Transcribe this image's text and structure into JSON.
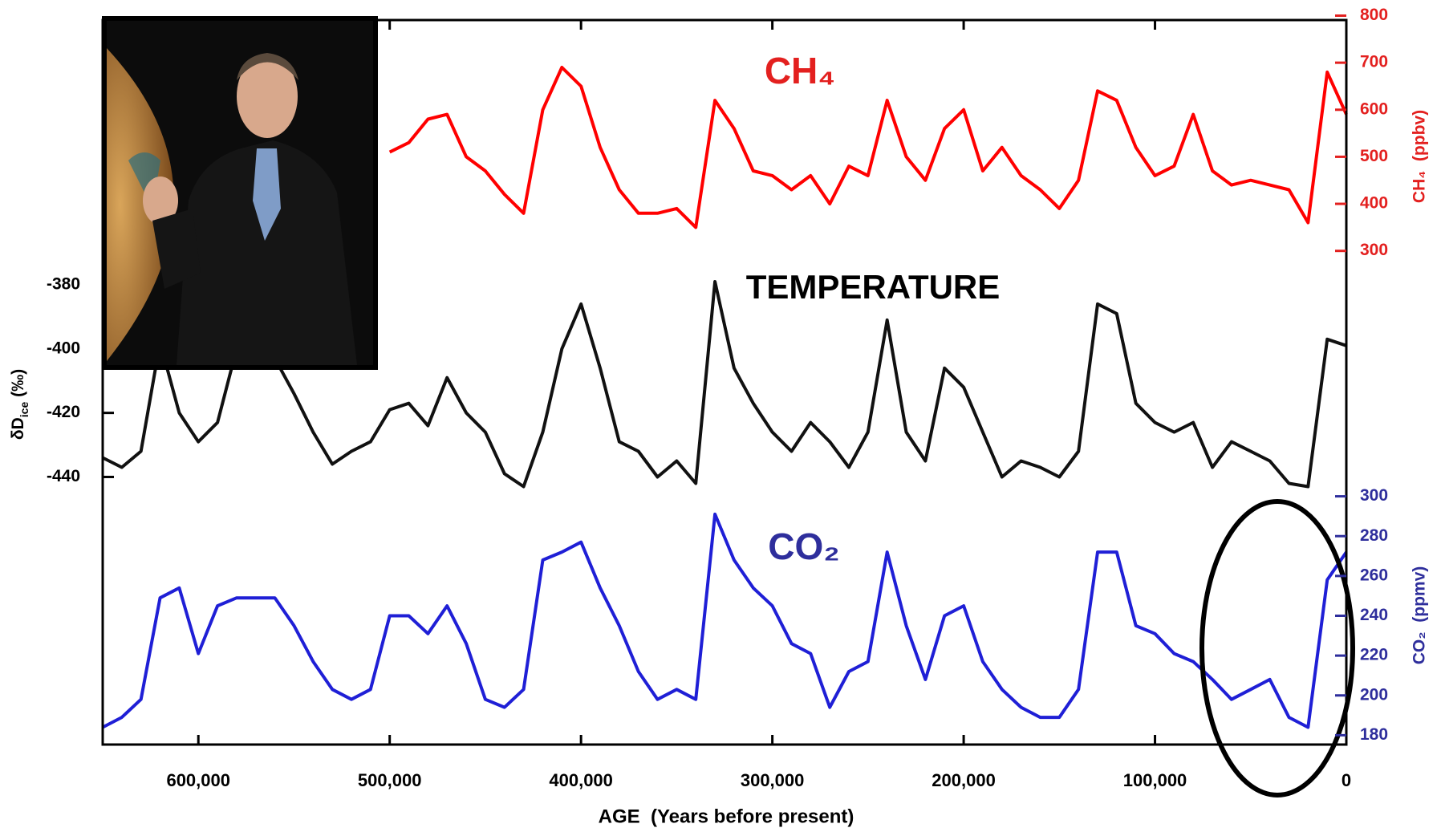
{
  "chart_data": {
    "type": "line",
    "xlabel": "AGE  (Years before present)",
    "xlim": [
      650000,
      0
    ],
    "xticks": [
      {
        "value": 600000,
        "label": "600,000"
      },
      {
        "value": 500000,
        "label": "500,000"
      },
      {
        "value": 400000,
        "label": "400,000"
      },
      {
        "value": 300000,
        "label": "300,000"
      },
      {
        "value": 200000,
        "label": "200,000"
      },
      {
        "value": 100000,
        "label": "100,000"
      },
      0
    ],
    "x": [
      650000,
      640000,
      630000,
      620000,
      610000,
      600000,
      590000,
      580000,
      570000,
      560000,
      550000,
      540000,
      530000,
      520000,
      510000,
      500000,
      490000,
      480000,
      470000,
      460000,
      450000,
      440000,
      430000,
      420000,
      410000,
      400000,
      390000,
      380000,
      370000,
      360000,
      350000,
      340000,
      330000,
      320000,
      310000,
      300000,
      290000,
      280000,
      270000,
      260000,
      250000,
      240000,
      230000,
      220000,
      210000,
      200000,
      190000,
      180000,
      170000,
      160000,
      150000,
      140000,
      130000,
      120000,
      110000,
      100000,
      90000,
      80000,
      70000,
      60000,
      50000,
      40000,
      30000,
      20000,
      10000,
      0
    ],
    "series": [
      {
        "name": "CH₄",
        "color": "#ff0000",
        "label_color": "#e3201f",
        "axis_side": "right",
        "ylabel": "CH₄  (ppbv)",
        "ylim": [
          300,
          800
        ],
        "yticks": [
          300,
          400,
          500,
          600,
          700,
          800
        ],
        "values": [
          null,
          null,
          null,
          null,
          null,
          null,
          null,
          null,
          null,
          null,
          null,
          null,
          null,
          null,
          null,
          510,
          530,
          580,
          590,
          500,
          470,
          420,
          380,
          600,
          690,
          650,
          520,
          430,
          380,
          380,
          390,
          350,
          620,
          560,
          470,
          460,
          430,
          460,
          400,
          480,
          460,
          620,
          500,
          450,
          560,
          600,
          470,
          520,
          460,
          430,
          390,
          450,
          640,
          620,
          520,
          460,
          480,
          590,
          470,
          440,
          450,
          440,
          430,
          360,
          680,
          590
        ]
      },
      {
        "name": "TEMPERATURE",
        "color": "#111111",
        "label_color": "#000000",
        "axis_side": "left",
        "ylabel": [
          "δD",
          "ice",
          " (‰)"
        ],
        "ylim": [
          -450,
          -375
        ],
        "yticks": [
          -440,
          -420,
          -400,
          -380
        ],
        "values": [
          -434,
          -437,
          -432,
          -398,
          -420,
          -429,
          -423,
          -400,
          -402,
          -403,
          -414,
          -426,
          -436,
          -432,
          -429,
          -419,
          -417,
          -424,
          -409,
          -420,
          -426,
          -439,
          -443,
          -426,
          -400,
          -386,
          -406,
          -429,
          -432,
          -440,
          -435,
          -442,
          -379,
          -406,
          -417,
          -426,
          -432,
          -423,
          -429,
          -437,
          -426,
          -391,
          -426,
          -435,
          -406,
          -412,
          -426,
          -440,
          -435,
          -437,
          -440,
          -432,
          -386,
          -389,
          -417,
          -423,
          -426,
          -423,
          -437,
          -429,
          -432,
          -435,
          -442,
          -443,
          -397,
          -399
        ]
      },
      {
        "name": "CO₂",
        "color": "#1f1fd6",
        "label_color": "#2e2e9c",
        "axis_side": "right",
        "ylabel": "CO₂  (ppmv)",
        "ylim": [
          175,
          300
        ],
        "yticks": [
          180,
          200,
          220,
          240,
          260,
          280,
          300
        ],
        "values": [
          184,
          189,
          198,
          249,
          254,
          221,
          245,
          249,
          249,
          249,
          235,
          217,
          203,
          198,
          203,
          240,
          240,
          231,
          245,
          226,
          198,
          194,
          203,
          268,
          272,
          277,
          254,
          235,
          212,
          198,
          203,
          198,
          291,
          268,
          254,
          245,
          226,
          221,
          194,
          212,
          217,
          272,
          235,
          208,
          240,
          245,
          217,
          203,
          194,
          189,
          189,
          203,
          272,
          272,
          235,
          231,
          221,
          217,
          208,
          198,
          203,
          208,
          189,
          184,
          258,
          272
        ]
      }
    ]
  }
}
